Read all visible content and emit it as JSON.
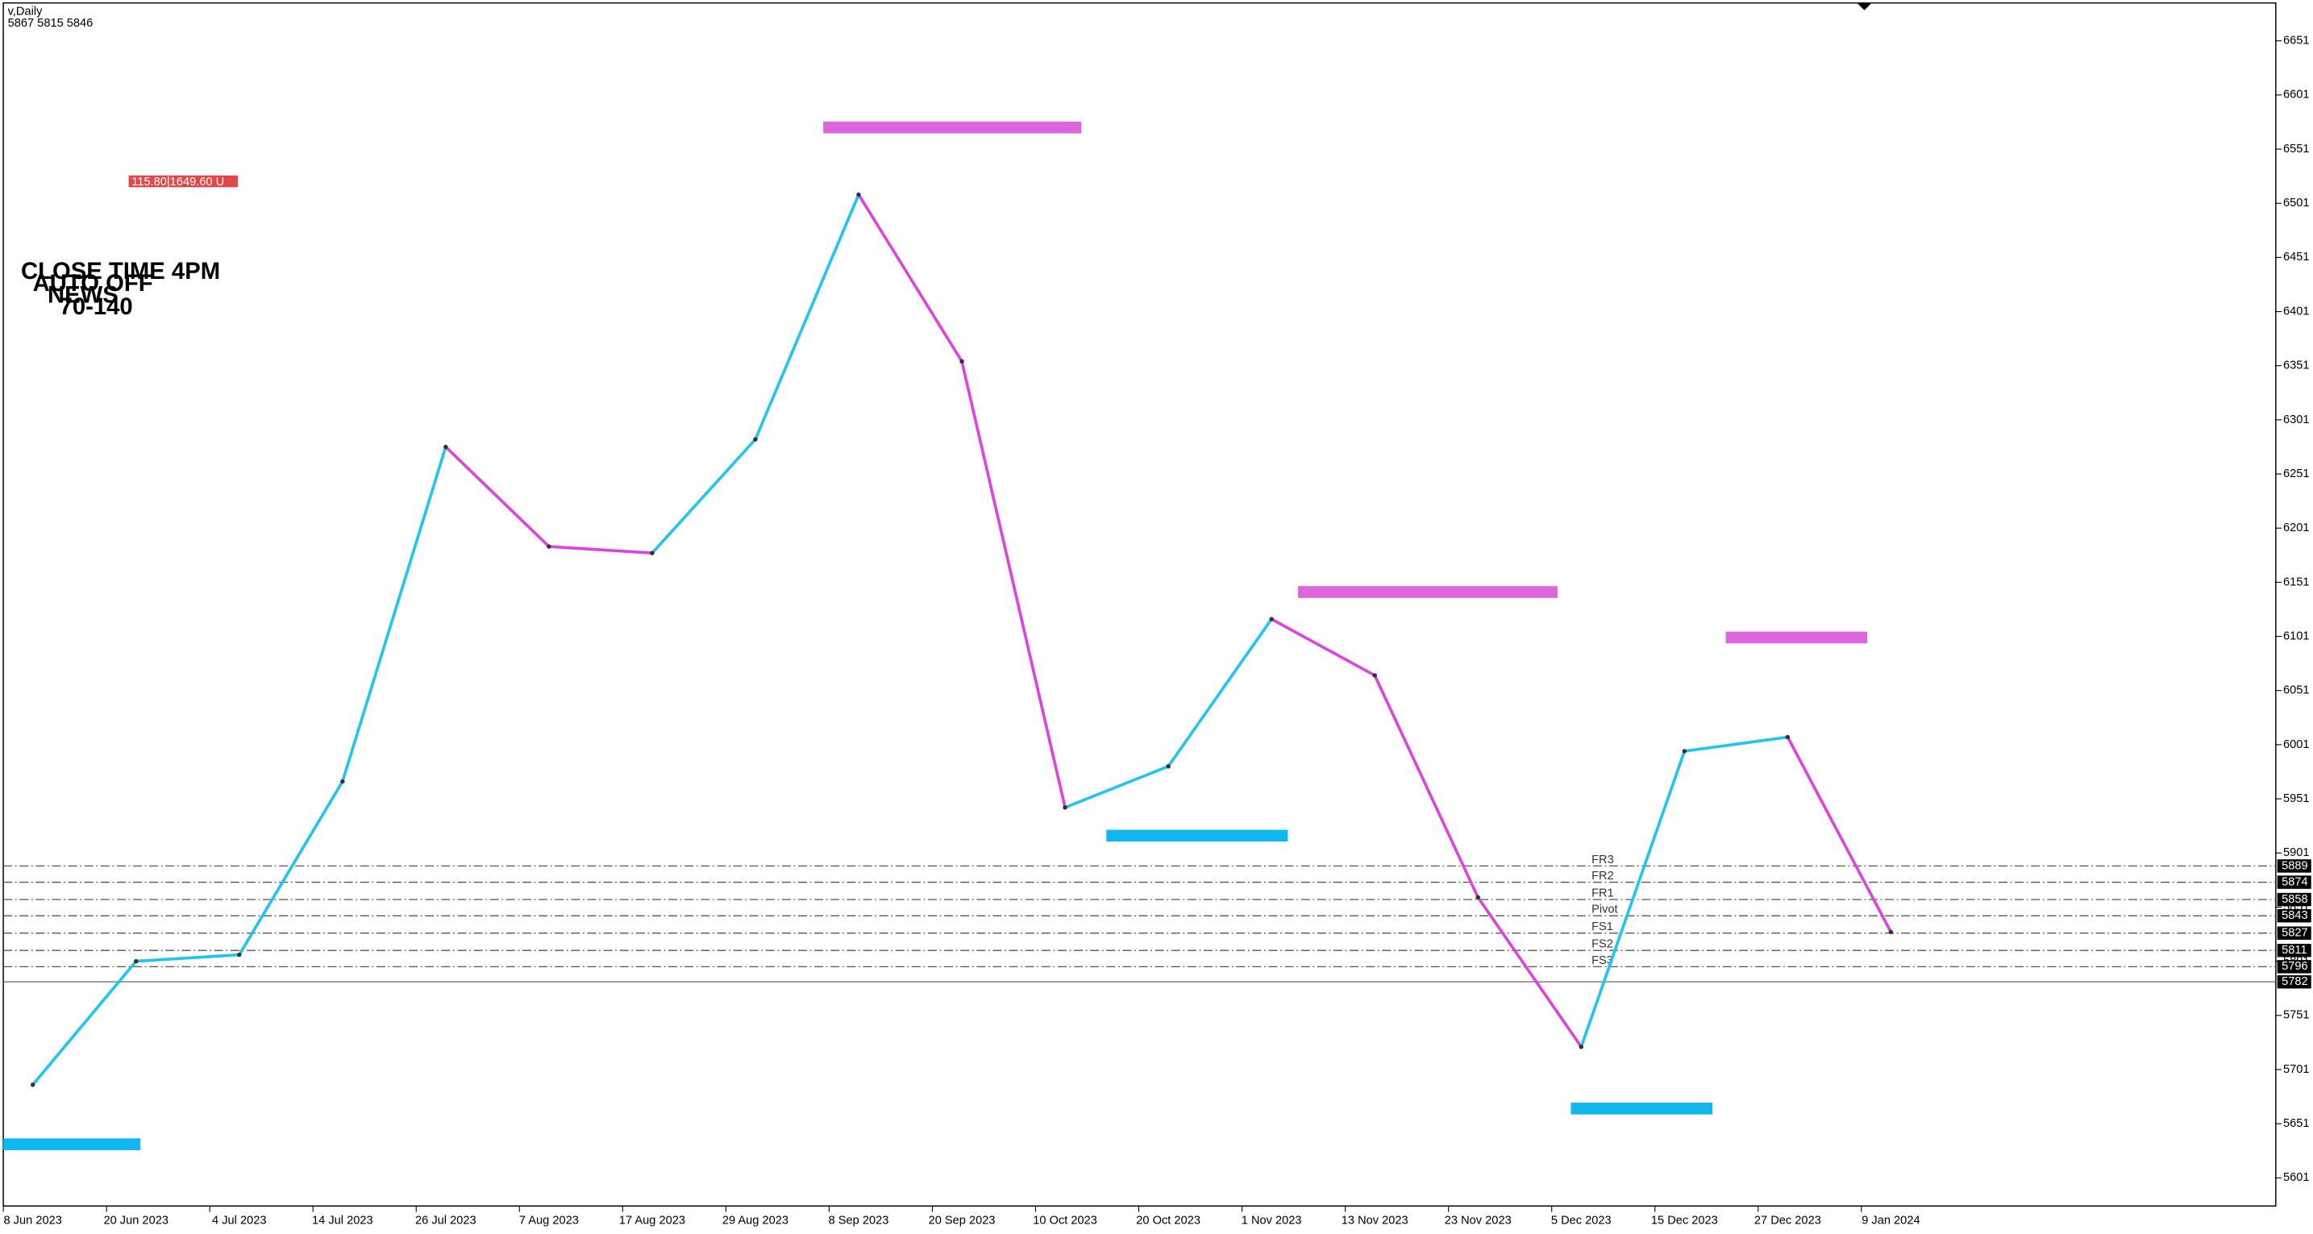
{
  "chart_data": {
    "type": "line",
    "header": [
      "v,Daily",
      "5867 5815 5846"
    ],
    "notes": [
      "CLOSE TIME 4PM",
      "AUTO OFF",
      "NEWS",
      "70-140"
    ],
    "badge": "115.80|1649.60 U",
    "categories": [
      "8 Jun 2023",
      "20 Jun 2023",
      "4 Jul 2023",
      "14 Jul 2023",
      "26 Jul 2023",
      "7 Aug 2023",
      "17 Aug 2023",
      "29 Aug 2023",
      "8 Sep 2023",
      "20 Sep 2023",
      "10 Oct 2023",
      "20 Oct 2023",
      "1 Nov 2023",
      "13 Nov 2023",
      "23 Nov 2023",
      "5 Dec 2023",
      "15 Dec 2023",
      "27 Dec 2023",
      "9 Jan 2024"
    ],
    "values": [
      5687,
      5801,
      5807,
      5967,
      6276,
      6184,
      6178,
      6283,
      6509,
      6355,
      5943,
      5981,
      6117,
      6065,
      5860,
      5722,
      5995,
      6008,
      5828
    ],
    "up_color": "#22c4f0",
    "down_color": "#dd44dd",
    "ylim": [
      5575,
      6686
    ],
    "yticks": [
      5601,
      5651,
      5701,
      5751,
      5801,
      5851,
      5901,
      5951,
      6001,
      6051,
      6101,
      6151,
      6201,
      6251,
      6301,
      6351,
      6401,
      6451,
      6501,
      6551,
      6601,
      6651
    ],
    "levels": [
      {
        "name": "FR3",
        "value": 5889
      },
      {
        "name": "FR2",
        "value": 5874
      },
      {
        "name": "FR1",
        "value": 5858
      },
      {
        "name": "Pivot",
        "value": 5843
      },
      {
        "name": "FS1",
        "value": 5827
      },
      {
        "name": "FS2",
        "value": 5811
      },
      {
        "name": "FS3",
        "value": 5796
      },
      {
        "value": 5782
      }
    ],
    "zones": [
      {
        "value": 6571,
        "color": "#dd66dd"
      },
      {
        "value": 6142,
        "color": "#dd66dd"
      },
      {
        "value": 6100,
        "color": "#dd66dd"
      },
      {
        "value": 5917,
        "color": "#11b8f0"
      },
      {
        "value": 5665,
        "color": "#11b8f0"
      },
      {
        "value": 5632,
        "color": "#11b8f0"
      }
    ],
    "grid": false
  }
}
